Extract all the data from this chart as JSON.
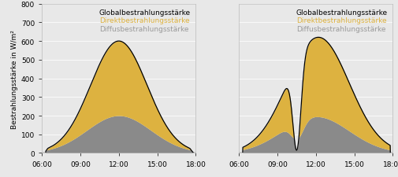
{
  "ylabel": "Bestrahlungsstärke in W/m²",
  "xticks": [
    6,
    9,
    12,
    15,
    18
  ],
  "xticklabels": [
    "06:00",
    "09:00",
    "12:00",
    "15:00",
    "18:00"
  ],
  "ylim": [
    0,
    800
  ],
  "yticks": [
    0,
    100,
    200,
    300,
    400,
    500,
    600,
    700,
    800
  ],
  "color_global": "#1a1a1a",
  "color_direkt": "#ddb240",
  "color_diffus": "#8a8a8a",
  "legend_labels": [
    "Globalbestrahlungsstärke",
    "Direktbestrahlungsstärke",
    "Diffusbestrahlungsstärke"
  ],
  "background_color": "#e8e8e8",
  "fig_facecolor": "#e8e8e8",
  "legend_fontsize": 6.5,
  "tick_fontsize": 6.5,
  "ylabel_fontsize": 6.5
}
